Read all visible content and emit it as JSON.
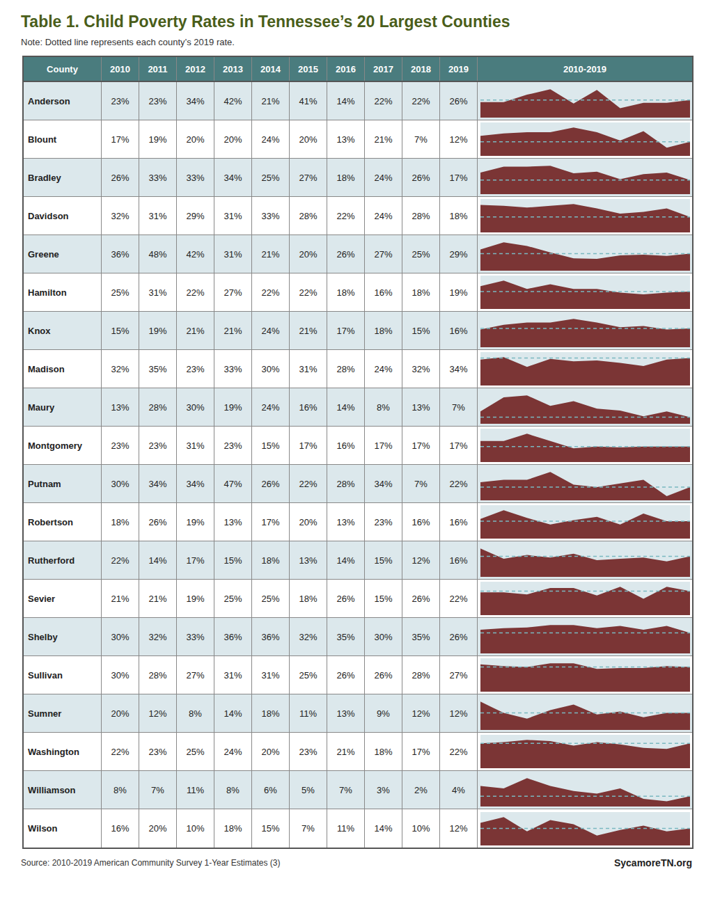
{
  "chart_data": {
    "type": "area",
    "title": "Table 1. Child Poverty Rates in Tennessee’s 20 Largest Counties",
    "subtitle": "Note: Dotted line represents each county’s 2019 rate.",
    "annotations": [
      "Source: 2010-2019 American Community Survey 1-Year Estimates (3)",
      "SycamoreTN.org"
    ],
    "ylabel": "County",
    "xlabel": "2010-2019",
    "categories": [
      "2010",
      "2011",
      "2012",
      "2013",
      "2014",
      "2015",
      "2016",
      "2017",
      "2018",
      "2019"
    ],
    "grid": false,
    "tick_labels": false,
    "series": [
      {
        "name": "Anderson",
        "color": "#7b3535",
        "values": [
          23,
          23,
          34,
          42,
          21,
          41,
          14,
          22,
          22,
          26
        ],
        "value_labels": [
          "23%",
          "23%",
          "34%",
          "42%",
          "21%",
          "41%",
          "14%",
          "22%",
          "22%",
          "26%"
        ],
        "ylim": [
          0,
          49.56
        ],
        "reference_value": 26
      },
      {
        "name": "Blount",
        "color": "#7b3535",
        "values": [
          17,
          19,
          20,
          20,
          24,
          20,
          13,
          21,
          7,
          12
        ],
        "value_labels": [
          "17%",
          "19%",
          "20%",
          "20%",
          "24%",
          "20%",
          "13%",
          "21%",
          "7%",
          "12%"
        ],
        "ylim": [
          0,
          28.32
        ],
        "reference_value": 12
      },
      {
        "name": "Bradley",
        "color": "#7b3535",
        "values": [
          26,
          33,
          33,
          34,
          25,
          27,
          18,
          24,
          26,
          17
        ],
        "value_labels": [
          "26%",
          "33%",
          "33%",
          "34%",
          "25%",
          "27%",
          "18%",
          "24%",
          "26%",
          "17%"
        ],
        "ylim": [
          0,
          40.12
        ],
        "reference_value": 17
      },
      {
        "name": "Davidson",
        "color": "#7b3535",
        "values": [
          32,
          31,
          29,
          31,
          33,
          28,
          22,
          24,
          28,
          18
        ],
        "value_labels": [
          "32%",
          "31%",
          "29%",
          "31%",
          "33%",
          "28%",
          "22%",
          "24%",
          "28%",
          "18%"
        ],
        "ylim": [
          0,
          38.94
        ],
        "reference_value": 18
      },
      {
        "name": "Greene",
        "color": "#7b3535",
        "values": [
          36,
          48,
          42,
          31,
          21,
          20,
          26,
          27,
          25,
          29
        ],
        "value_labels": [
          "36%",
          "48%",
          "42%",
          "31%",
          "21%",
          "20%",
          "26%",
          "27%",
          "25%",
          "29%"
        ],
        "ylim": [
          0,
          56.64
        ],
        "reference_value": 29
      },
      {
        "name": "Hamilton",
        "color": "#7b3535",
        "values": [
          25,
          31,
          22,
          27,
          22,
          22,
          18,
          16,
          18,
          19
        ],
        "value_labels": [
          "25%",
          "31%",
          "22%",
          "27%",
          "22%",
          "22%",
          "18%",
          "16%",
          "18%",
          "19%"
        ],
        "ylim": [
          0,
          36.58
        ],
        "reference_value": 19
      },
      {
        "name": "Knox",
        "color": "#7b3535",
        "values": [
          15,
          19,
          21,
          21,
          24,
          21,
          17,
          18,
          15,
          16
        ],
        "value_labels": [
          "15%",
          "19%",
          "21%",
          "21%",
          "24%",
          "21%",
          "17%",
          "18%",
          "15%",
          "16%"
        ],
        "ylim": [
          0,
          28.32
        ],
        "reference_value": 16
      },
      {
        "name": "Madison",
        "color": "#7b3535",
        "values": [
          32,
          35,
          23,
          33,
          30,
          31,
          28,
          24,
          32,
          34
        ],
        "value_labels": [
          "32%",
          "35%",
          "23%",
          "33%",
          "30%",
          "31%",
          "28%",
          "24%",
          "32%",
          "34%"
        ],
        "ylim": [
          0,
          41.3
        ],
        "reference_value": 34
      },
      {
        "name": "Maury",
        "color": "#7b3535",
        "values": [
          13,
          28,
          30,
          19,
          24,
          16,
          14,
          8,
          13,
          7
        ],
        "value_labels": [
          "13%",
          "28%",
          "30%",
          "19%",
          "24%",
          "16%",
          "14%",
          "8%",
          "13%",
          "7%"
        ],
        "ylim": [
          0,
          35.4
        ],
        "reference_value": 7
      },
      {
        "name": "Montgomery",
        "color": "#7b3535",
        "values": [
          23,
          23,
          31,
          23,
          15,
          17,
          16,
          17,
          17,
          17
        ],
        "value_labels": [
          "23%",
          "23%",
          "31%",
          "23%",
          "15%",
          "17%",
          "16%",
          "17%",
          "17%",
          "17%"
        ],
        "ylim": [
          0,
          36.58
        ],
        "reference_value": 17
      },
      {
        "name": "Putnam",
        "color": "#7b3535",
        "values": [
          30,
          34,
          34,
          47,
          26,
          22,
          28,
          34,
          7,
          22
        ],
        "value_labels": [
          "30%",
          "34%",
          "34%",
          "47%",
          "26%",
          "22%",
          "28%",
          "34%",
          "7%",
          "22%"
        ],
        "ylim": [
          0,
          55.46
        ],
        "reference_value": 22
      },
      {
        "name": "Robertson",
        "color": "#7b3535",
        "values": [
          18,
          26,
          19,
          13,
          17,
          20,
          13,
          23,
          16,
          16
        ],
        "value_labels": [
          "18%",
          "26%",
          "19%",
          "13%",
          "17%",
          "20%",
          "13%",
          "23%",
          "16%",
          "16%"
        ],
        "ylim": [
          0,
          30.68
        ],
        "reference_value": 16
      },
      {
        "name": "Rutherford",
        "color": "#7b3535",
        "values": [
          22,
          14,
          17,
          15,
          18,
          13,
          14,
          15,
          12,
          16
        ],
        "value_labels": [
          "22%",
          "14%",
          "17%",
          "15%",
          "18%",
          "13%",
          "14%",
          "15%",
          "12%",
          "16%"
        ],
        "ylim": [
          0,
          25.96
        ],
        "reference_value": 16
      },
      {
        "name": "Sevier",
        "color": "#7b3535",
        "values": [
          21,
          21,
          19,
          25,
          25,
          18,
          26,
          15,
          26,
          22
        ],
        "value_labels": [
          "21%",
          "21%",
          "19%",
          "25%",
          "25%",
          "18%",
          "26%",
          "15%",
          "26%",
          "22%"
        ],
        "ylim": [
          0,
          30.68
        ],
        "reference_value": 22
      },
      {
        "name": "Shelby",
        "color": "#7b3535",
        "values": [
          30,
          32,
          33,
          36,
          36,
          32,
          35,
          30,
          35,
          26
        ],
        "value_labels": [
          "30%",
          "32%",
          "33%",
          "36%",
          "36%",
          "32%",
          "35%",
          "30%",
          "35%",
          "26%"
        ],
        "ylim": [
          0,
          42.48
        ],
        "reference_value": 26
      },
      {
        "name": "Sullivan",
        "color": "#7b3535",
        "values": [
          30,
          28,
          27,
          31,
          31,
          25,
          26,
          26,
          28,
          27
        ],
        "value_labels": [
          "30%",
          "28%",
          "27%",
          "31%",
          "31%",
          "25%",
          "26%",
          "26%",
          "28%",
          "27%"
        ],
        "ylim": [
          0,
          36.58
        ],
        "reference_value": 27
      },
      {
        "name": "Sumner",
        "color": "#7b3535",
        "values": [
          20,
          12,
          8,
          14,
          18,
          11,
          13,
          9,
          12,
          12
        ],
        "value_labels": [
          "20%",
          "12%",
          "8%",
          "14%",
          "18%",
          "11%",
          "13%",
          "9%",
          "12%",
          "12%"
        ],
        "ylim": [
          0,
          23.6
        ],
        "reference_value": 12
      },
      {
        "name": "Washington",
        "color": "#7b3535",
        "values": [
          22,
          23,
          25,
          24,
          20,
          23,
          21,
          18,
          17,
          22
        ],
        "value_labels": [
          "22%",
          "23%",
          "25%",
          "24%",
          "20%",
          "23%",
          "21%",
          "18%",
          "17%",
          "22%"
        ],
        "ylim": [
          0,
          29.5
        ],
        "reference_value": 22
      },
      {
        "name": "Williamson",
        "color": "#7b3535",
        "values": [
          8,
          7,
          11,
          8,
          6,
          5,
          7,
          3,
          2,
          4
        ],
        "value_labels": [
          "8%",
          "7%",
          "11%",
          "8%",
          "6%",
          "5%",
          "7%",
          "3%",
          "2%",
          "4%"
        ],
        "ylim": [
          0,
          12.98
        ],
        "reference_value": 4
      },
      {
        "name": "Wilson",
        "color": "#7b3535",
        "values": [
          16,
          20,
          10,
          18,
          15,
          7,
          11,
          14,
          10,
          12
        ],
        "value_labels": [
          "16%",
          "20%",
          "10%",
          "18%",
          "15%",
          "7%",
          "11%",
          "14%",
          "10%",
          "12%"
        ],
        "ylim": [
          0,
          23.6
        ],
        "reference_value": 12
      }
    ]
  }
}
